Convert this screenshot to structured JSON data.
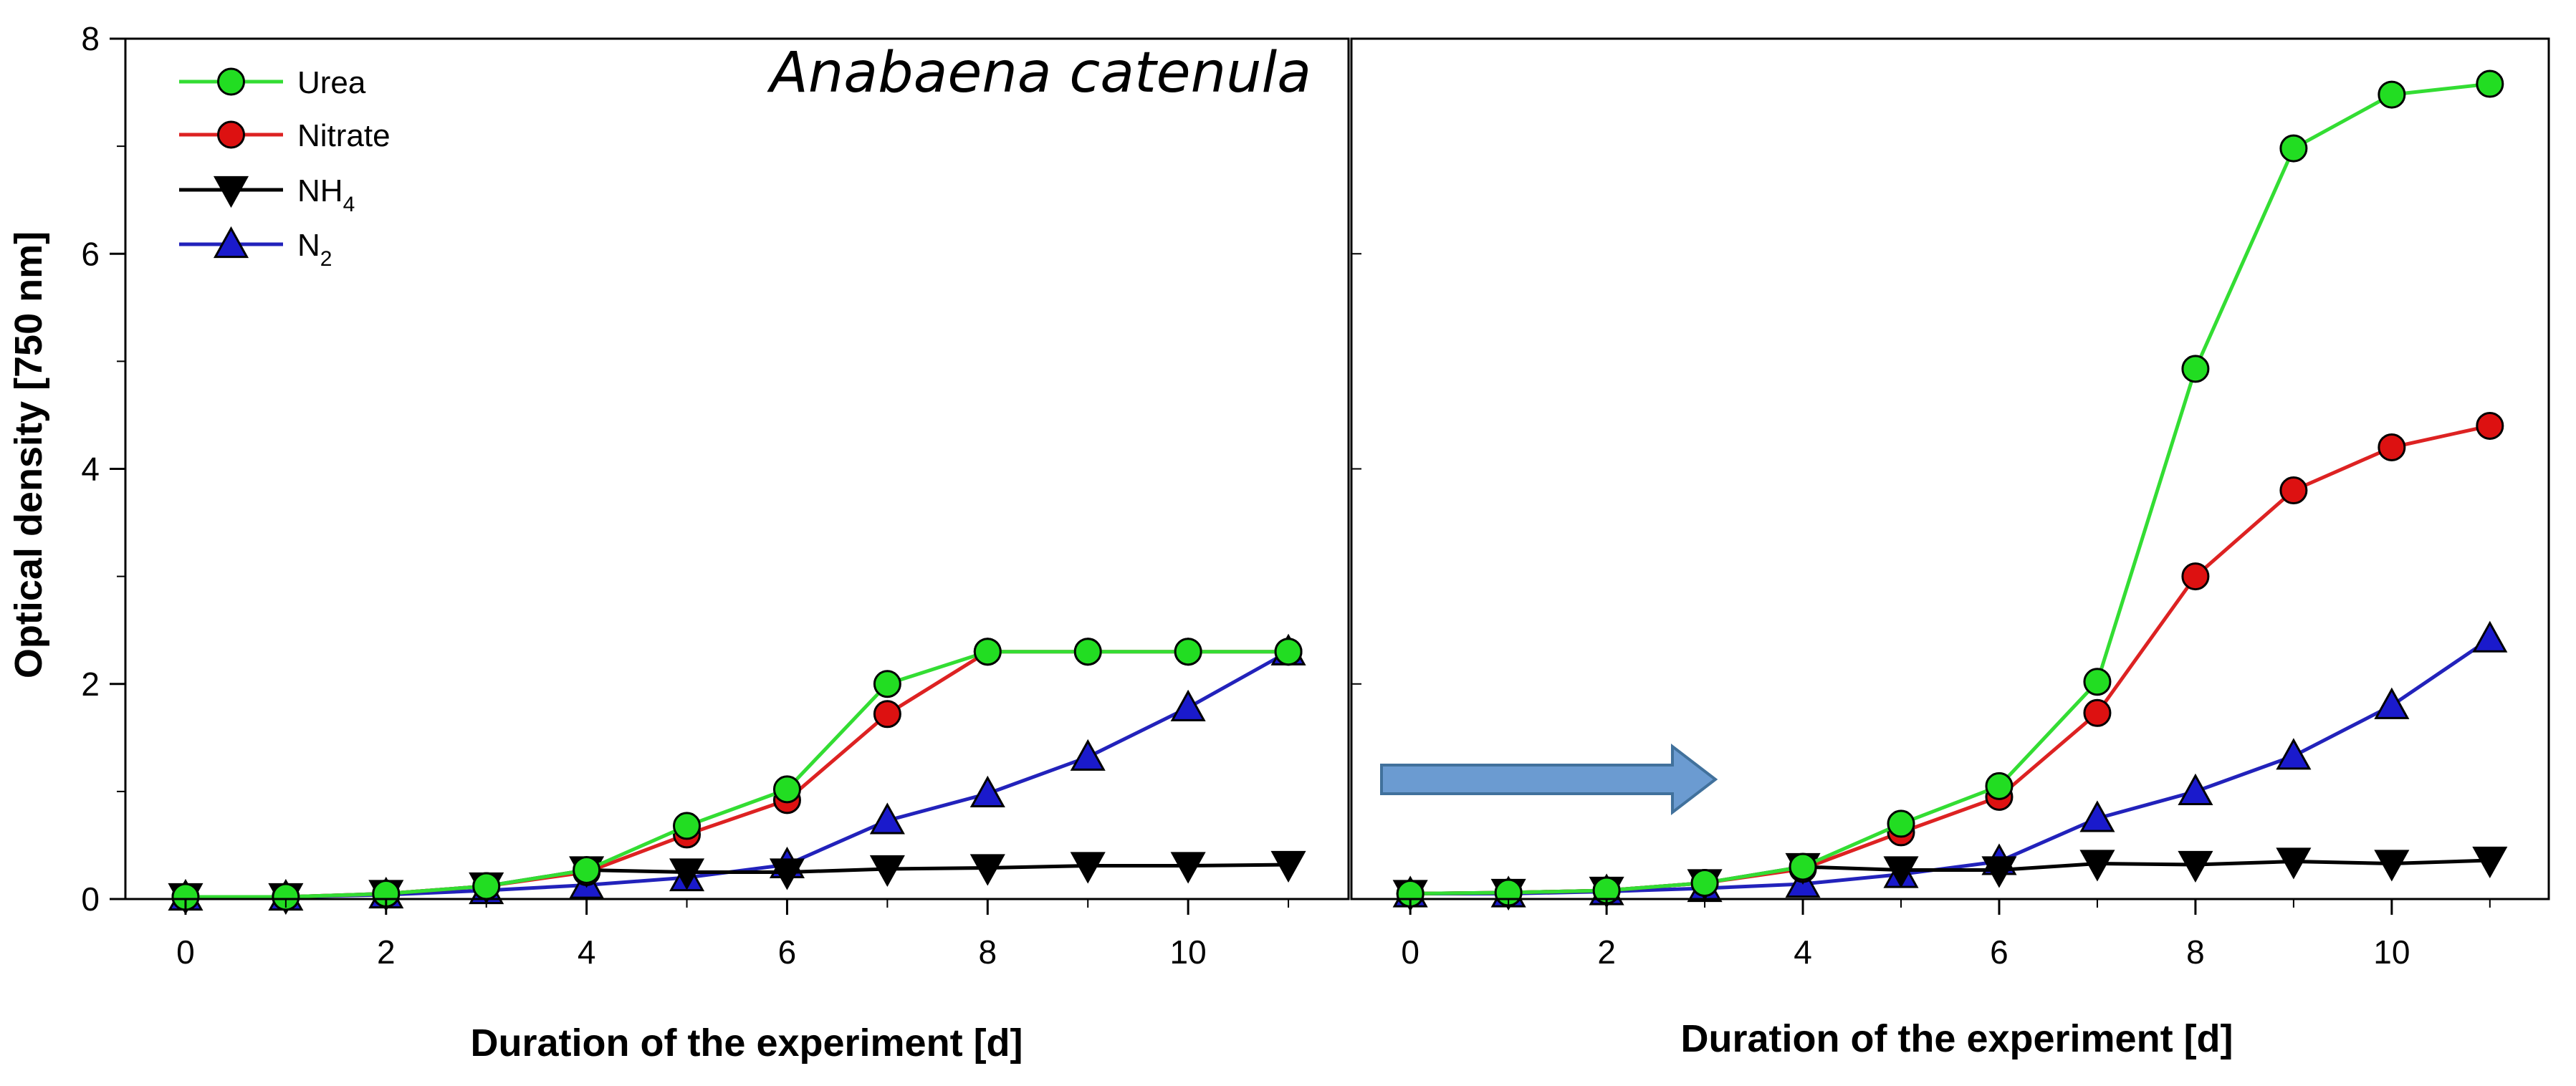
{
  "chart_data": [
    {
      "type": "line",
      "panel": "left",
      "title": "Anabaena catenula",
      "xlabel": "Duration of the experiment [d]",
      "ylabel": "Optical density [750 nm]",
      "xlim": [
        -0.6,
        11.6
      ],
      "ylim": [
        0,
        8
      ],
      "xticks": [
        "0",
        "2",
        "4",
        "6",
        "8",
        "10"
      ],
      "xtick_values": [
        0,
        2,
        4,
        6,
        8,
        10
      ],
      "yticks": [
        "0",
        "2",
        "4",
        "6",
        "8"
      ],
      "ytick_values": [
        0,
        2,
        4,
        6,
        8
      ],
      "x": [
        0,
        1,
        2,
        3,
        4,
        5,
        6,
        7,
        8,
        9,
        10,
        11
      ],
      "series": [
        {
          "name": "Urea",
          "marker": "circle",
          "line_color": "#33dd33",
          "marker_color": "#22dd22",
          "values": [
            0.02,
            0.02,
            0.05,
            0.12,
            0.27,
            0.68,
            1.02,
            2.0,
            2.3,
            2.3,
            2.3,
            2.3
          ]
        },
        {
          "name": "Nitrate",
          "marker": "circle",
          "line_color": "#dd2222",
          "marker_color": "#dd1111",
          "values": [
            0.02,
            0.02,
            0.05,
            0.12,
            0.25,
            0.6,
            0.92,
            1.72,
            2.3,
            2.3,
            2.3,
            2.3
          ]
        },
        {
          "name": "NH4",
          "marker": "triangle-down",
          "line_color": "#000000",
          "marker_color": "#000000",
          "values": [
            0.02,
            0.02,
            0.05,
            0.12,
            0.27,
            0.25,
            0.25,
            0.28,
            0.29,
            0.31,
            0.31,
            0.32
          ]
        },
        {
          "name": "N2",
          "marker": "triangle-up",
          "line_color": "#2222bb",
          "marker_color": "#1a1acc",
          "values": [
            0.02,
            0.02,
            0.04,
            0.08,
            0.13,
            0.2,
            0.32,
            0.73,
            0.98,
            1.32,
            1.78,
            2.3
          ]
        }
      ]
    },
    {
      "type": "line",
      "panel": "right",
      "title": "",
      "xlabel": "Duration of the experiment [d]",
      "ylabel": "",
      "xlim": [
        -0.6,
        11.6
      ],
      "ylim": [
        0,
        8
      ],
      "xticks": [
        "0",
        "2",
        "4",
        "6",
        "8",
        "10"
      ],
      "xtick_values": [
        0,
        2,
        4,
        6,
        8,
        10
      ],
      "yticks": [],
      "ytick_values": [
        0,
        2,
        4,
        6,
        8
      ],
      "x": [
        0,
        1,
        2,
        3,
        4,
        5,
        6,
        7,
        8,
        9,
        10,
        11
      ],
      "series": [
        {
          "name": "Urea",
          "marker": "circle",
          "line_color": "#33dd33",
          "marker_color": "#22dd22",
          "values": [
            0.05,
            0.06,
            0.08,
            0.15,
            0.3,
            0.7,
            1.05,
            2.02,
            4.93,
            6.98,
            7.48,
            7.58
          ]
        },
        {
          "name": "Nitrate",
          "marker": "circle",
          "line_color": "#dd2222",
          "marker_color": "#dd1111",
          "values": [
            0.05,
            0.06,
            0.08,
            0.15,
            0.28,
            0.62,
            0.95,
            1.73,
            3.0,
            3.8,
            4.2,
            4.4
          ]
        },
        {
          "name": "NH4",
          "marker": "triangle-down",
          "line_color": "#000000",
          "marker_color": "#000000",
          "values": [
            0.05,
            0.06,
            0.08,
            0.15,
            0.3,
            0.27,
            0.27,
            0.33,
            0.32,
            0.35,
            0.33,
            0.36
          ]
        },
        {
          "name": "N2",
          "marker": "triangle-up",
          "line_color": "#2222bb",
          "marker_color": "#1a1acc",
          "values": [
            0.05,
            0.05,
            0.07,
            0.1,
            0.14,
            0.23,
            0.35,
            0.75,
            1.0,
            1.33,
            1.8,
            2.42
          ]
        }
      ]
    }
  ],
  "legend": {
    "placement": "top-left",
    "entries": [
      {
        "label": "Urea",
        "sub": ""
      },
      {
        "label": "Nitrate",
        "sub": ""
      },
      {
        "label": "NH",
        "sub": "4"
      },
      {
        "label": "N",
        "sub": "2"
      }
    ]
  },
  "annotation_arrow": {
    "color": "#6b9bd1",
    "stroke": "#41719c",
    "direction": "right"
  }
}
